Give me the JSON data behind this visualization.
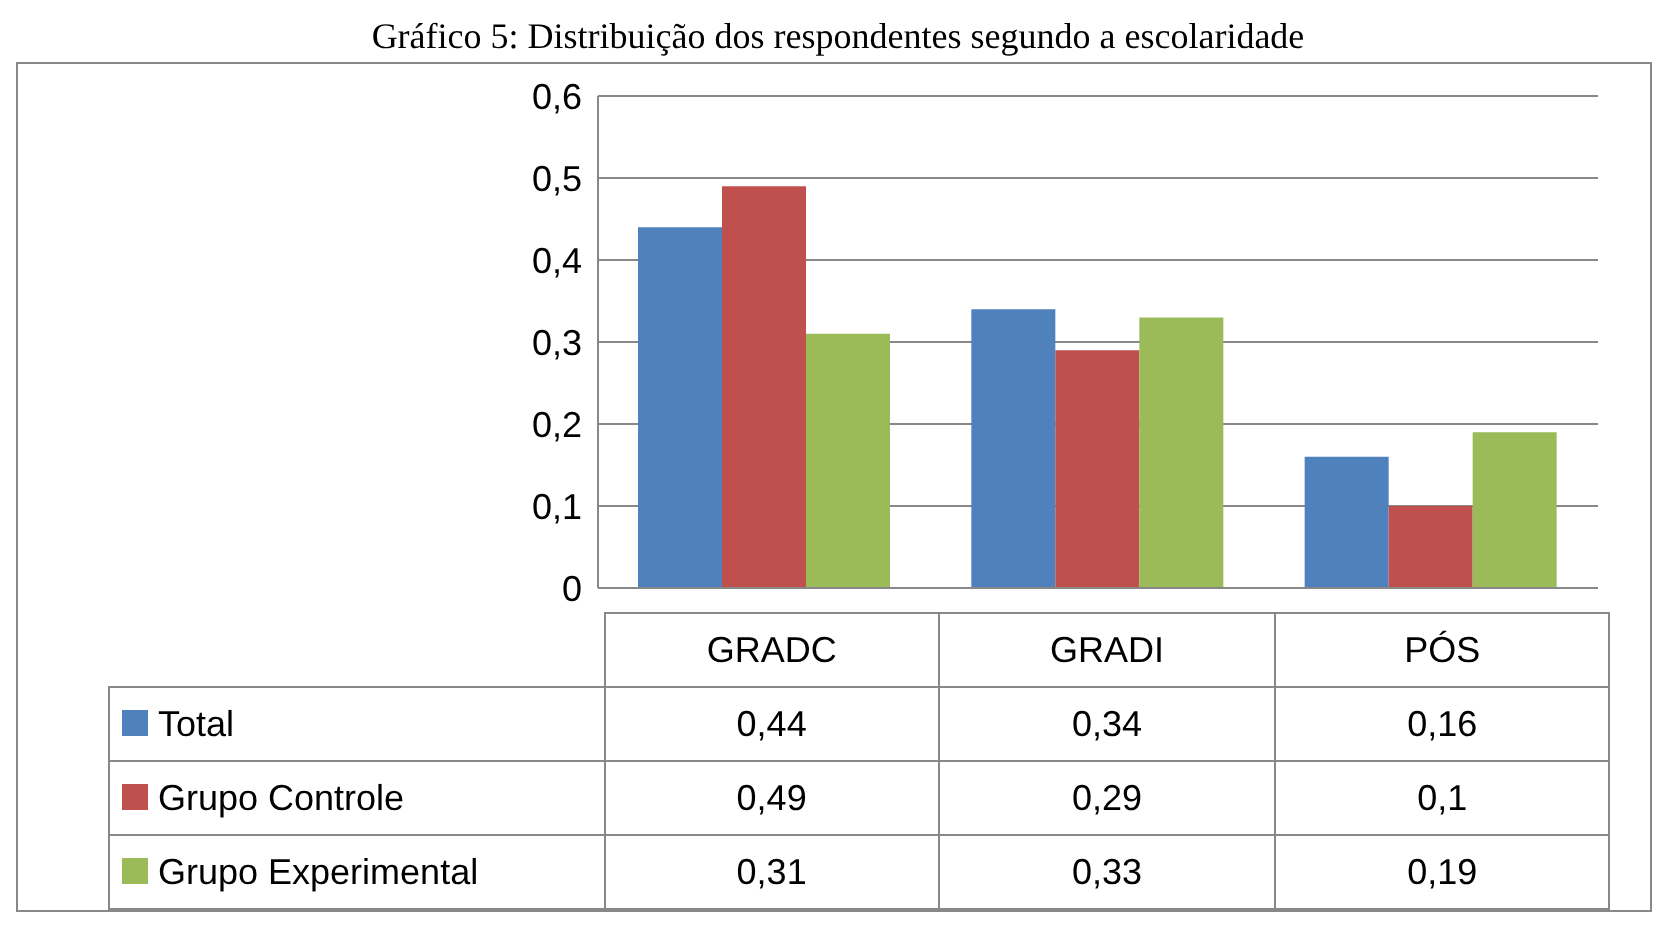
{
  "chart_data": {
    "type": "bar",
    "title": "Gráfico 5: Distribuição dos respondentes segundo a escolaridade",
    "categories": [
      "GRADC",
      "GRADI",
      "PÓS"
    ],
    "series": [
      {
        "name": "Total",
        "color": "#4f81bd",
        "values": [
          0.44,
          0.34,
          0.16
        ],
        "value_labels": [
          "0,44",
          "0,34",
          "0,16"
        ]
      },
      {
        "name": "Grupo Controle",
        "color": "#c0504d",
        "values": [
          0.49,
          0.29,
          0.1
        ],
        "value_labels": [
          "0,49",
          "0,29",
          "0,1"
        ]
      },
      {
        "name": "Grupo Experimental",
        "color": "#9bbb59",
        "values": [
          0.31,
          0.33,
          0.19
        ],
        "value_labels": [
          "0,31",
          "0,33",
          "0,19"
        ]
      }
    ],
    "ylim": [
      0,
      0.6
    ],
    "yticks": [
      {
        "value": 0,
        "label": "0"
      },
      {
        "value": 0.1,
        "label": "0,1"
      },
      {
        "value": 0.2,
        "label": "0,2"
      },
      {
        "value": 0.3,
        "label": "0,3"
      },
      {
        "value": 0.4,
        "label": "0,4"
      },
      {
        "value": 0.5,
        "label": "0,5"
      },
      {
        "value": 0.6,
        "label": "0,6"
      }
    ],
    "grid": "y",
    "legend": "bottom"
  }
}
